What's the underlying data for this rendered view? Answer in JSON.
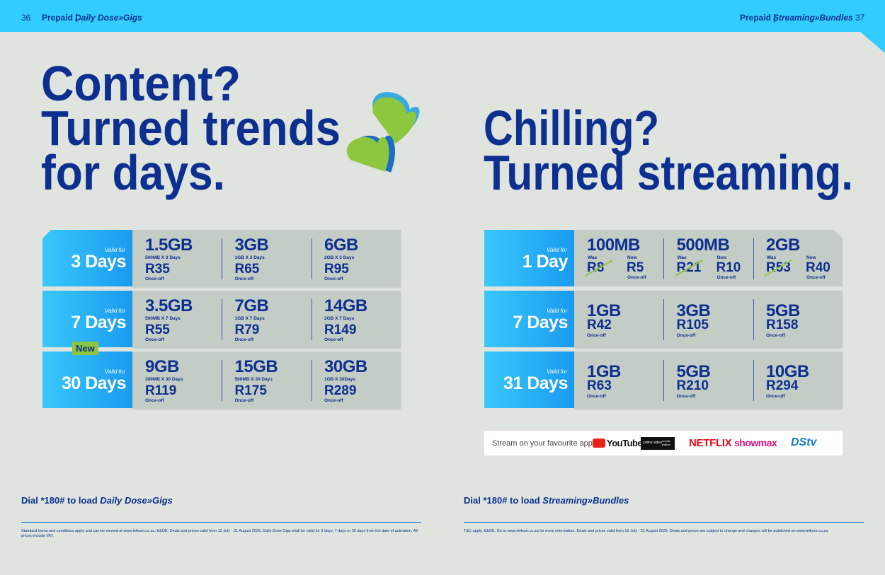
{
  "header": {
    "left_page": "36",
    "left_brand": "Prepaid |",
    "left_product": "Daily Dose»Gigs",
    "right_brand": "Prepaid |",
    "right_product": "Streaming»Bundles",
    "right_page": "37"
  },
  "left": {
    "headline": [
      "Content?",
      "Turned trends",
      "for days."
    ],
    "rows": [
      {
        "valid_for": "Valid for",
        "duration": "3 Days",
        "offers": [
          {
            "data": "1.5GB",
            "detail": "500MB X 3 Days",
            "price": "R35",
            "note": "Once-off"
          },
          {
            "data": "3GB",
            "detail": "1GB X 3 Days",
            "price": "R65",
            "note": "Once-off"
          },
          {
            "data": "6GB",
            "detail": "2GB X 3 Days",
            "price": "R95",
            "note": "Once-off"
          }
        ]
      },
      {
        "valid_for": "Valid for",
        "duration": "7 Days",
        "offers": [
          {
            "data": "3.5GB",
            "detail": "500MB X 7 Days",
            "price": "R55",
            "note": "Once-off"
          },
          {
            "data": "7GB",
            "detail": "1GB X 7 Days",
            "price": "R79",
            "note": "Once-off"
          },
          {
            "data": "14GB",
            "detail": "2GB X 7 Days",
            "price": "R149",
            "note": "Once-off"
          }
        ]
      },
      {
        "valid_for": "Valid for",
        "duration": "30 Days",
        "badge": "New",
        "offers": [
          {
            "data": "9GB",
            "detail": "300MB X 30 Days",
            "price": "R119",
            "note": "Once-off"
          },
          {
            "data": "15GB",
            "detail": "500MB X 30 Days",
            "price": "R175",
            "note": "Once-off"
          },
          {
            "data": "30GB",
            "detail": "1GB X 30Days",
            "price": "R289",
            "note": "Once-off"
          }
        ]
      }
    ],
    "footer": {
      "dial": "Dial *180# to load",
      "product": "Daily Dose»Gigs",
      "terms": "Standard terms and conditions apply and can be viewed at www.telkom.co.za. E&OE. Deals and prices valid from 12 July - 31 August 2025. Daily Dose Gigs shall be valid for 3 days, 7 days or 30 days from the date of activation. All prices include VAT."
    }
  },
  "right": {
    "headline": [
      "Chilling?",
      "Turned streaming."
    ],
    "rows": [
      {
        "valid_for": "Valid for",
        "duration": "1 Day",
        "offers": [
          {
            "data": "100MB",
            "was_label": "Was",
            "was_price": "R8",
            "now_label": "Now",
            "now_price": "R5",
            "note": "Once-off"
          },
          {
            "data": "500MB",
            "was_label": "Was",
            "was_price": "R21",
            "now_label": "Now",
            "now_price": "R10",
            "note": "Once-off"
          },
          {
            "data": "2GB",
            "was_label": "Was",
            "was_price": "R53",
            "now_label": "Now",
            "now_price": "R40",
            "note": "Once-off"
          }
        ]
      },
      {
        "valid_for": "Valid for",
        "duration": "7 Days",
        "offers": [
          {
            "data": "1GB",
            "price": "R42",
            "note": "Once-off"
          },
          {
            "data": "3GB",
            "price": "R105",
            "note": "Once-off"
          },
          {
            "data": "5GB",
            "price": "R158",
            "note": "Once-off"
          }
        ]
      },
      {
        "valid_for": "Valid for",
        "duration": "31 Days",
        "offers": [
          {
            "data": "1GB",
            "price": "R63",
            "note": "Once-off"
          },
          {
            "data": "5GB",
            "price": "R210",
            "note": "Once-off"
          },
          {
            "data": "10GB",
            "price": "R294",
            "note": "Once-off"
          }
        ]
      }
    ],
    "apps": {
      "intro": "Stream on your favourite apps.",
      "logos": [
        "YouTube",
        "prime video",
        "mobile edition",
        "NETFLIX",
        "showmax",
        "DStv"
      ]
    },
    "footer": {
      "dial": "Dial *180# to load",
      "product": "Streaming»Bundles",
      "terms": "T&C apply. E&OE. Go to www.telkom.co.za for more information. Deals and prices valid from 12 July - 31 August 2025. Deals and prices are subject to change and changes will be published on www.telkom.co.za."
    }
  }
}
